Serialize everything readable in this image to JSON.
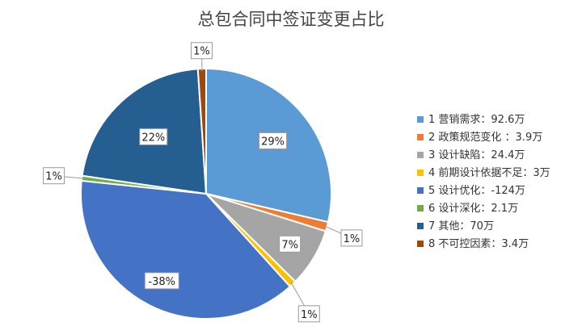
{
  "chart_data": {
    "type": "pie",
    "title": "总包合同中签证变更占比",
    "legend_position": "right",
    "categories": [
      "1 营销需求：92.6万",
      "2 政策规范变化 ：3.9万",
      "3 设计缺陷：24.4万",
      "4 前期设计依据不足：3万",
      "5 设计优化：-124万",
      "6 设计深化：2.1万",
      "7 其他：70万",
      "8 不可控因素：3.4万"
    ],
    "values": [
      92.6,
      3.9,
      24.4,
      3,
      -124,
      2.1,
      70,
      3.4
    ],
    "data_labels": [
      "29%",
      "1%",
      "7%",
      "1%",
      "-38%",
      "1%",
      "22%",
      "1%"
    ],
    "colors": [
      "#5B9BD5",
      "#ED7D31",
      "#A5A5A5",
      "#FFC000",
      "#4472C4",
      "#70AD47",
      "#255E91",
      "#9E480E"
    ]
  }
}
